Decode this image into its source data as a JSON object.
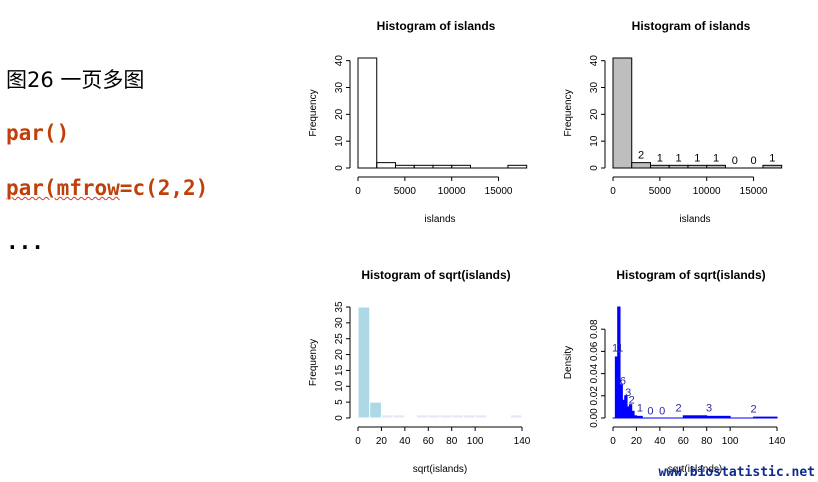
{
  "slide": {
    "title": "图26 一页多图",
    "code_line_1": "par()",
    "code_line_2_underlined": "par(mfrow",
    "code_line_2_rest": "=c(2,2)",
    "ellipsis": "...",
    "watermark": "www.biostatistic.net"
  },
  "colors": {
    "code": "#c0400a",
    "watermark": "#0d2a8c",
    "gray_fill": "#bebebe",
    "light_blue": "#add8e6",
    "lavender": "#e6e6fa",
    "mistyrose": "#ffe4e1",
    "blue": "#0000ff"
  },
  "chart_data": [
    {
      "id": "p1",
      "type": "bar",
      "title": "Histogram of islands",
      "xlabel": "islands",
      "ylabel": "Frequency",
      "xlim": [
        0,
        17500
      ],
      "ylim": [
        0,
        41
      ],
      "xticks": [
        0,
        5000,
        10000,
        15000
      ],
      "yticks": [
        0,
        10,
        20,
        30,
        40
      ],
      "breaks": [
        0,
        2000,
        4000,
        6000,
        8000,
        10000,
        12000,
        14000,
        16000,
        18000
      ],
      "values": [
        41,
        2,
        1,
        1,
        1,
        1,
        0,
        0,
        1
      ],
      "fill": "none",
      "labels": false
    },
    {
      "id": "p2",
      "type": "bar",
      "title": "Histogram of islands",
      "xlabel": "islands",
      "ylabel": "Frequency",
      "xlim": [
        0,
        17500
      ],
      "ylim": [
        0,
        41
      ],
      "xticks": [
        0,
        5000,
        10000,
        15000
      ],
      "yticks": [
        0,
        10,
        20,
        30,
        40
      ],
      "breaks": [
        0,
        2000,
        4000,
        6000,
        8000,
        10000,
        12000,
        14000,
        16000,
        18000
      ],
      "values": [
        41,
        2,
        1,
        1,
        1,
        1,
        0,
        0,
        1
      ],
      "fill": "gray",
      "labels": true,
      "label_values": [
        "",
        "2",
        "1",
        "1",
        "1",
        "1",
        "0",
        "0",
        "1"
      ]
    },
    {
      "id": "p3",
      "type": "bar",
      "title": "Histogram of sqrt(islands)",
      "xlabel": "sqrt(islands)",
      "ylabel": "Frequency",
      "xlim": [
        0,
        140
      ],
      "ylim": [
        0,
        35
      ],
      "xticks": [
        0,
        20,
        40,
        60,
        80,
        100,
        140
      ],
      "yticks": [
        0,
        5,
        10,
        15,
        20,
        25,
        30,
        35
      ],
      "breaks": [
        0,
        10,
        20,
        30,
        40,
        50,
        60,
        70,
        80,
        90,
        100,
        110,
        120,
        130,
        140
      ],
      "values": [
        35,
        5,
        1,
        1,
        0,
        1,
        1,
        1,
        1,
        1,
        1,
        0,
        0,
        1
      ],
      "fill": "pastel",
      "labels": false
    },
    {
      "id": "p4",
      "type": "bar",
      "title": "Histogram of sqrt(islands)",
      "xlabel": "sqrt(islands)",
      "ylabel": "Density",
      "xlim": [
        0,
        140
      ],
      "ylim": [
        0,
        0.1
      ],
      "xticks": [
        0,
        20,
        40,
        60,
        80,
        100,
        140
      ],
      "yticks": [
        0.0,
        0.02,
        0.04,
        0.06,
        0.08
      ],
      "ytick_labels": [
        "0.00",
        "0.02",
        "0.04",
        "0.06",
        "0.08"
      ],
      "breaks": [
        0,
        2,
        4,
        6,
        8,
        10,
        12,
        14,
        16,
        18,
        20,
        25,
        30,
        40,
        50,
        60,
        80,
        100,
        120,
        140
      ],
      "values": [
        0.0,
        0.055,
        0.1,
        0.03,
        0.016,
        0.02,
        0.01,
        0.012,
        0.006,
        0.002,
        0.0015,
        0.0,
        0.0,
        0.0,
        0.0,
        0.002,
        0.0015,
        0.0,
        0.0008
      ],
      "fill": "blue",
      "labels": true,
      "annotations": [
        {
          "x": 4,
          "y": 0.06,
          "text": "11"
        },
        {
          "x": 8.5,
          "y": 0.03,
          "text": "6"
        },
        {
          "x": 13,
          "y": 0.02,
          "text": "3"
        },
        {
          "x": 16,
          "y": 0.013,
          "text": "2"
        },
        {
          "x": 23,
          "y": 0.006,
          "text": "1"
        },
        {
          "x": 32,
          "y": 0.003,
          "text": "0"
        },
        {
          "x": 42,
          "y": 0.003,
          "text": "0"
        },
        {
          "x": 56,
          "y": 0.006,
          "text": "2"
        },
        {
          "x": 82,
          "y": 0.006,
          "text": "3"
        },
        {
          "x": 120,
          "y": 0.005,
          "text": "2"
        }
      ]
    }
  ]
}
